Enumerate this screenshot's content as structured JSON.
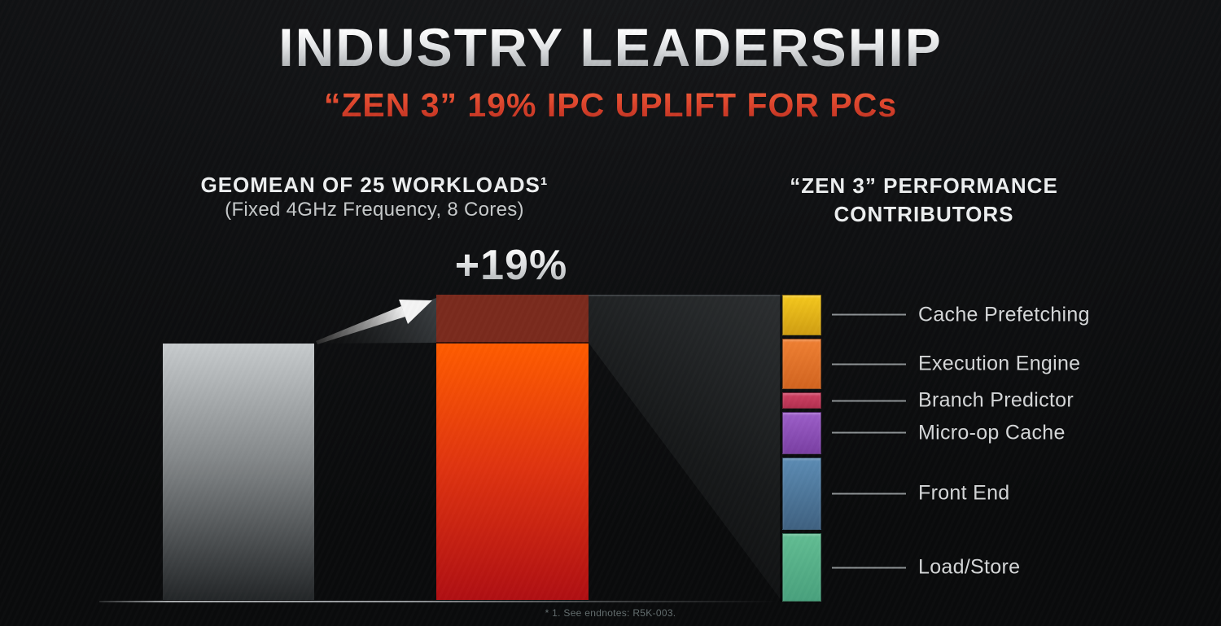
{
  "slide": {
    "title": "INDUSTRY LEADERSHIP",
    "subtitle": "“ZEN 3” 19% IPC UPLIFT FOR PCs",
    "footnote": "* 1. See endnotes: R5K-003."
  },
  "left_chart": {
    "heading": "GEOMEAN OF 25 WORKLOADS¹",
    "subheading": "(Fixed 4GHz Frequency, 8 Cores)"
  },
  "right_chart": {
    "heading_line1": "“ZEN 3” PERFORMANCE",
    "heading_line2": "CONTRIBUTORS"
  },
  "chart_data": {
    "type": "bar",
    "title": "GEOMEAN OF 25 WORKLOADS¹ (Fixed 4GHz Frequency, 8 Cores)",
    "values": [
      1.0,
      1.19
    ],
    "annotation": "+19%",
    "ylim": [
      0,
      1.19
    ],
    "grid": false,
    "legend_position": "right",
    "axis_color": "#9b9ea0",
    "baseline_bar": {
      "color_top": "#c7cbcd",
      "color_mid": "#84888a",
      "color_bottom": "#232628"
    },
    "uplift_bar": {
      "color_top": "#ff5c00",
      "color_mid": "#e03410",
      "color_bottom": "#b00f13",
      "delta_color": "#7a2b1d",
      "delta_edge": "#3a120c"
    },
    "contributors": [
      {
        "label": "Cache Prefetching",
        "share_pct": 14.0,
        "color_top": "#f5c81d",
        "color_bottom": "#d09e12"
      },
      {
        "label": "Execution Engine",
        "share_pct": 17.5,
        "color_top": "#f08033",
        "color_bottom": "#d2641f"
      },
      {
        "label": "Branch Predictor",
        "share_pct": 5.5,
        "color_top": "#d04263",
        "color_bottom": "#b33050"
      },
      {
        "label": "Micro-op Cache",
        "share_pct": 14.5,
        "color_top": "#9d5fc9",
        "color_bottom": "#7a3fa3"
      },
      {
        "label": "Front End",
        "share_pct": 25.0,
        "color_top": "#5c8cb4",
        "color_bottom": "#3f6181"
      },
      {
        "label": "Load/Store",
        "share_pct": 23.5,
        "color_top": "#62bd93",
        "color_bottom": "#49a17d"
      }
    ]
  }
}
